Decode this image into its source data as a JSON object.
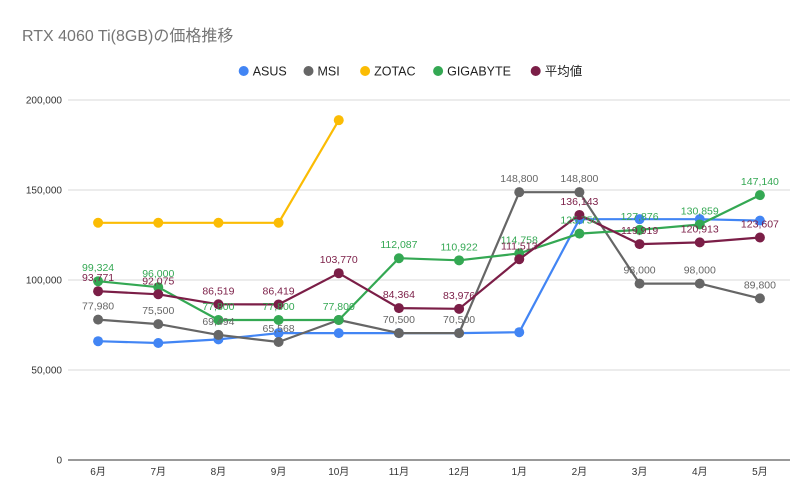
{
  "chart_data": {
    "type": "line",
    "title": "RTX 4060 Ti(8GB)の価格推移",
    "categories": [
      "6月",
      "7月",
      "8月",
      "9月",
      "10月",
      "11月",
      "12月",
      "1月",
      "2月",
      "3月",
      "4月",
      "5月"
    ],
    "ylim": [
      0,
      200000
    ],
    "yticks": [
      "0",
      "50,000",
      "100,000",
      "150,000",
      "200,000"
    ],
    "ytick_values": [
      0,
      50000,
      100000,
      150000,
      200000
    ],
    "grid": true,
    "legend_position": "top",
    "series": [
      {
        "name": "ASUS",
        "color": "#4285f4",
        "values": [
          66000,
          65000,
          67000,
          70500,
          70500,
          70500,
          70500,
          71000,
          133800,
          133800,
          133800,
          133000
        ],
        "labels": [
          null,
          null,
          null,
          null,
          null,
          null,
          null,
          null,
          null,
          null,
          null,
          null
        ]
      },
      {
        "name": "MSI",
        "color": "#666666",
        "values": [
          77980,
          75500,
          69494,
          65568,
          77800,
          70500,
          70500,
          148800,
          148800,
          98000,
          98000,
          89800
        ],
        "labels": [
          "77,980",
          "75,500",
          "69,494",
          "65,568",
          null,
          "70,500",
          "70,500",
          "148,800",
          "148,800",
          "98,000",
          "98,000",
          "89,800"
        ]
      },
      {
        "name": "ZOTAC",
        "color": "#fbbc04",
        "values": [
          131800,
          131800,
          131800,
          131800,
          188800,
          null,
          null,
          null,
          null,
          null,
          null,
          null
        ],
        "labels": [
          null,
          null,
          null,
          null,
          null,
          null,
          null,
          null,
          null,
          null,
          null,
          null
        ]
      },
      {
        "name": "GIGABYTE",
        "color": "#34a853",
        "values": [
          99324,
          96000,
          77800,
          77800,
          77800,
          112087,
          110922,
          114758,
          125750,
          127876,
          130859,
          147140
        ],
        "labels": [
          "99,324",
          "96,000",
          "77,800",
          "77,800",
          "77,800",
          "112,087",
          "110,922",
          "114,758",
          "125,750",
          "127,876",
          "130,859",
          "147,140"
        ]
      },
      {
        "name": "平均値",
        "color": "#7b1e47",
        "values": [
          93771,
          92075,
          86519,
          86419,
          103770,
          84364,
          83976,
          111513,
          136143,
          119919,
          120913,
          123607
        ],
        "labels": [
          "93,771",
          "92,075",
          "86,519",
          "86,419",
          "103,770",
          "84,364",
          "83,976",
          "111,513",
          "136,143",
          "119,919",
          "120,913",
          "123,607"
        ]
      }
    ]
  }
}
